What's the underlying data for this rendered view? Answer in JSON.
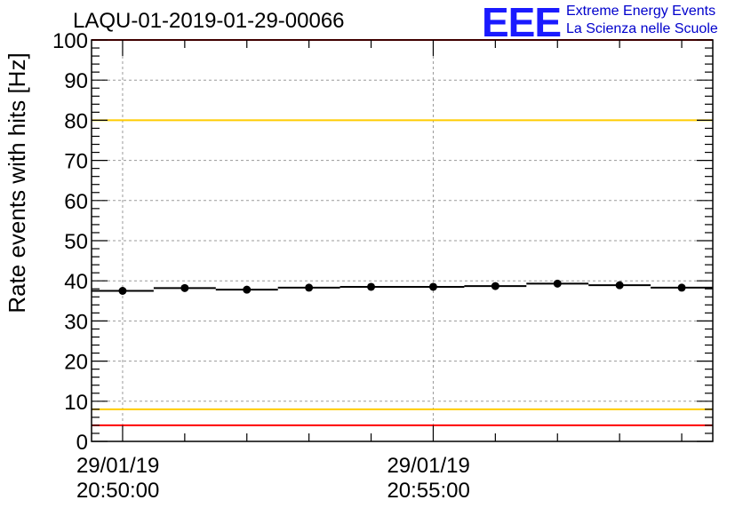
{
  "header": {
    "title": "LAQU-01-2019-01-29-00066"
  },
  "logo": {
    "letters": "EEE",
    "line1": "Extreme Energy Events",
    "line2": "La Scienza nelle Scuole",
    "color": "#1a1aff"
  },
  "chart_data": {
    "type": "scatter",
    "title": "LAQU-01-2019-01-29-00066",
    "xlabel": "",
    "ylabel": "Rate events with hits [Hz]",
    "ylim": [
      0,
      100
    ],
    "yticks": [
      0,
      10,
      20,
      30,
      40,
      50,
      60,
      70,
      80,
      90,
      100
    ],
    "xlim_minutes": [
      -0.5,
      9.5
    ],
    "x_tick_labels": [
      {
        "at_minute": 0,
        "date": "29/01/19",
        "time": "20:50:00"
      },
      {
        "at_minute": 5,
        "date": "29/01/19",
        "time": "20:55:00"
      }
    ],
    "x_minor_tick_minutes": [
      1,
      2,
      3,
      4,
      6,
      7,
      8,
      9
    ],
    "bin_width_minutes": 1,
    "series": [
      {
        "name": "rate",
        "x_minutes": [
          0,
          1,
          2,
          3,
          4,
          5,
          6,
          7,
          8,
          9
        ],
        "values": [
          37.5,
          38.2,
          37.8,
          38.3,
          38.5,
          38.5,
          38.7,
          39.3,
          38.9,
          38.3
        ]
      }
    ],
    "reference_lines": [
      {
        "y": 100,
        "color": "#ff0000"
      },
      {
        "y": 80,
        "color": "#ffcc00"
      },
      {
        "y": 8,
        "color": "#ffcc00"
      },
      {
        "y": 4,
        "color": "#ff0000"
      }
    ],
    "grid": true
  }
}
